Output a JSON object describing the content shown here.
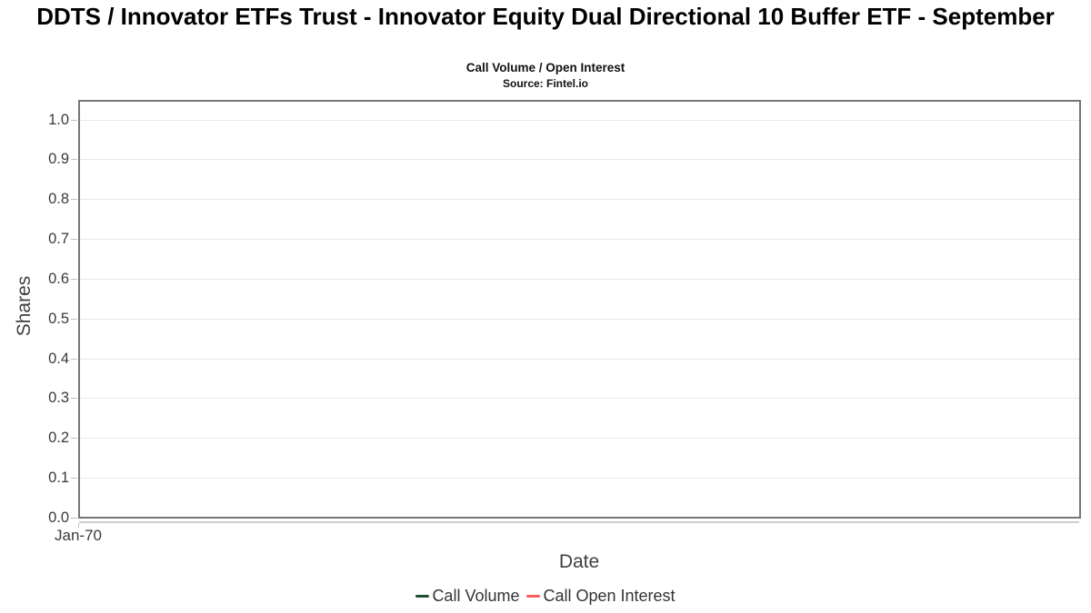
{
  "chart_data": {
    "type": "line",
    "title": "DDTS / Innovator ETFs Trust - Innovator Equity Dual Directional 10 Buffer ETF - September",
    "subtitle": "Call Volume / Open Interest",
    "source": "Source: Fintel.io",
    "xlabel": "Date",
    "ylabel": "Shares",
    "x_tick_labels": [
      "Jan-70"
    ],
    "y_ticks": [
      0.0,
      0.1,
      0.2,
      0.3,
      0.4,
      0.5,
      0.6,
      0.7,
      0.8,
      0.9,
      1.0
    ],
    "ylim": [
      0.0,
      1.05
    ],
    "grid": true,
    "legend_position": "bottom",
    "series": [
      {
        "name": "Call Volume",
        "color": "#1e4d2e",
        "x": [],
        "values": []
      },
      {
        "name": "Call Open Interest",
        "color": "#f85d5d",
        "x": [],
        "values": []
      }
    ]
  },
  "colors": {
    "plot_border": "#75757a",
    "gridline": "#e9e9e9",
    "tick_mark": "#c0c0c0",
    "text_primary": "#000000",
    "text_axis": "#3a3a3a"
  }
}
